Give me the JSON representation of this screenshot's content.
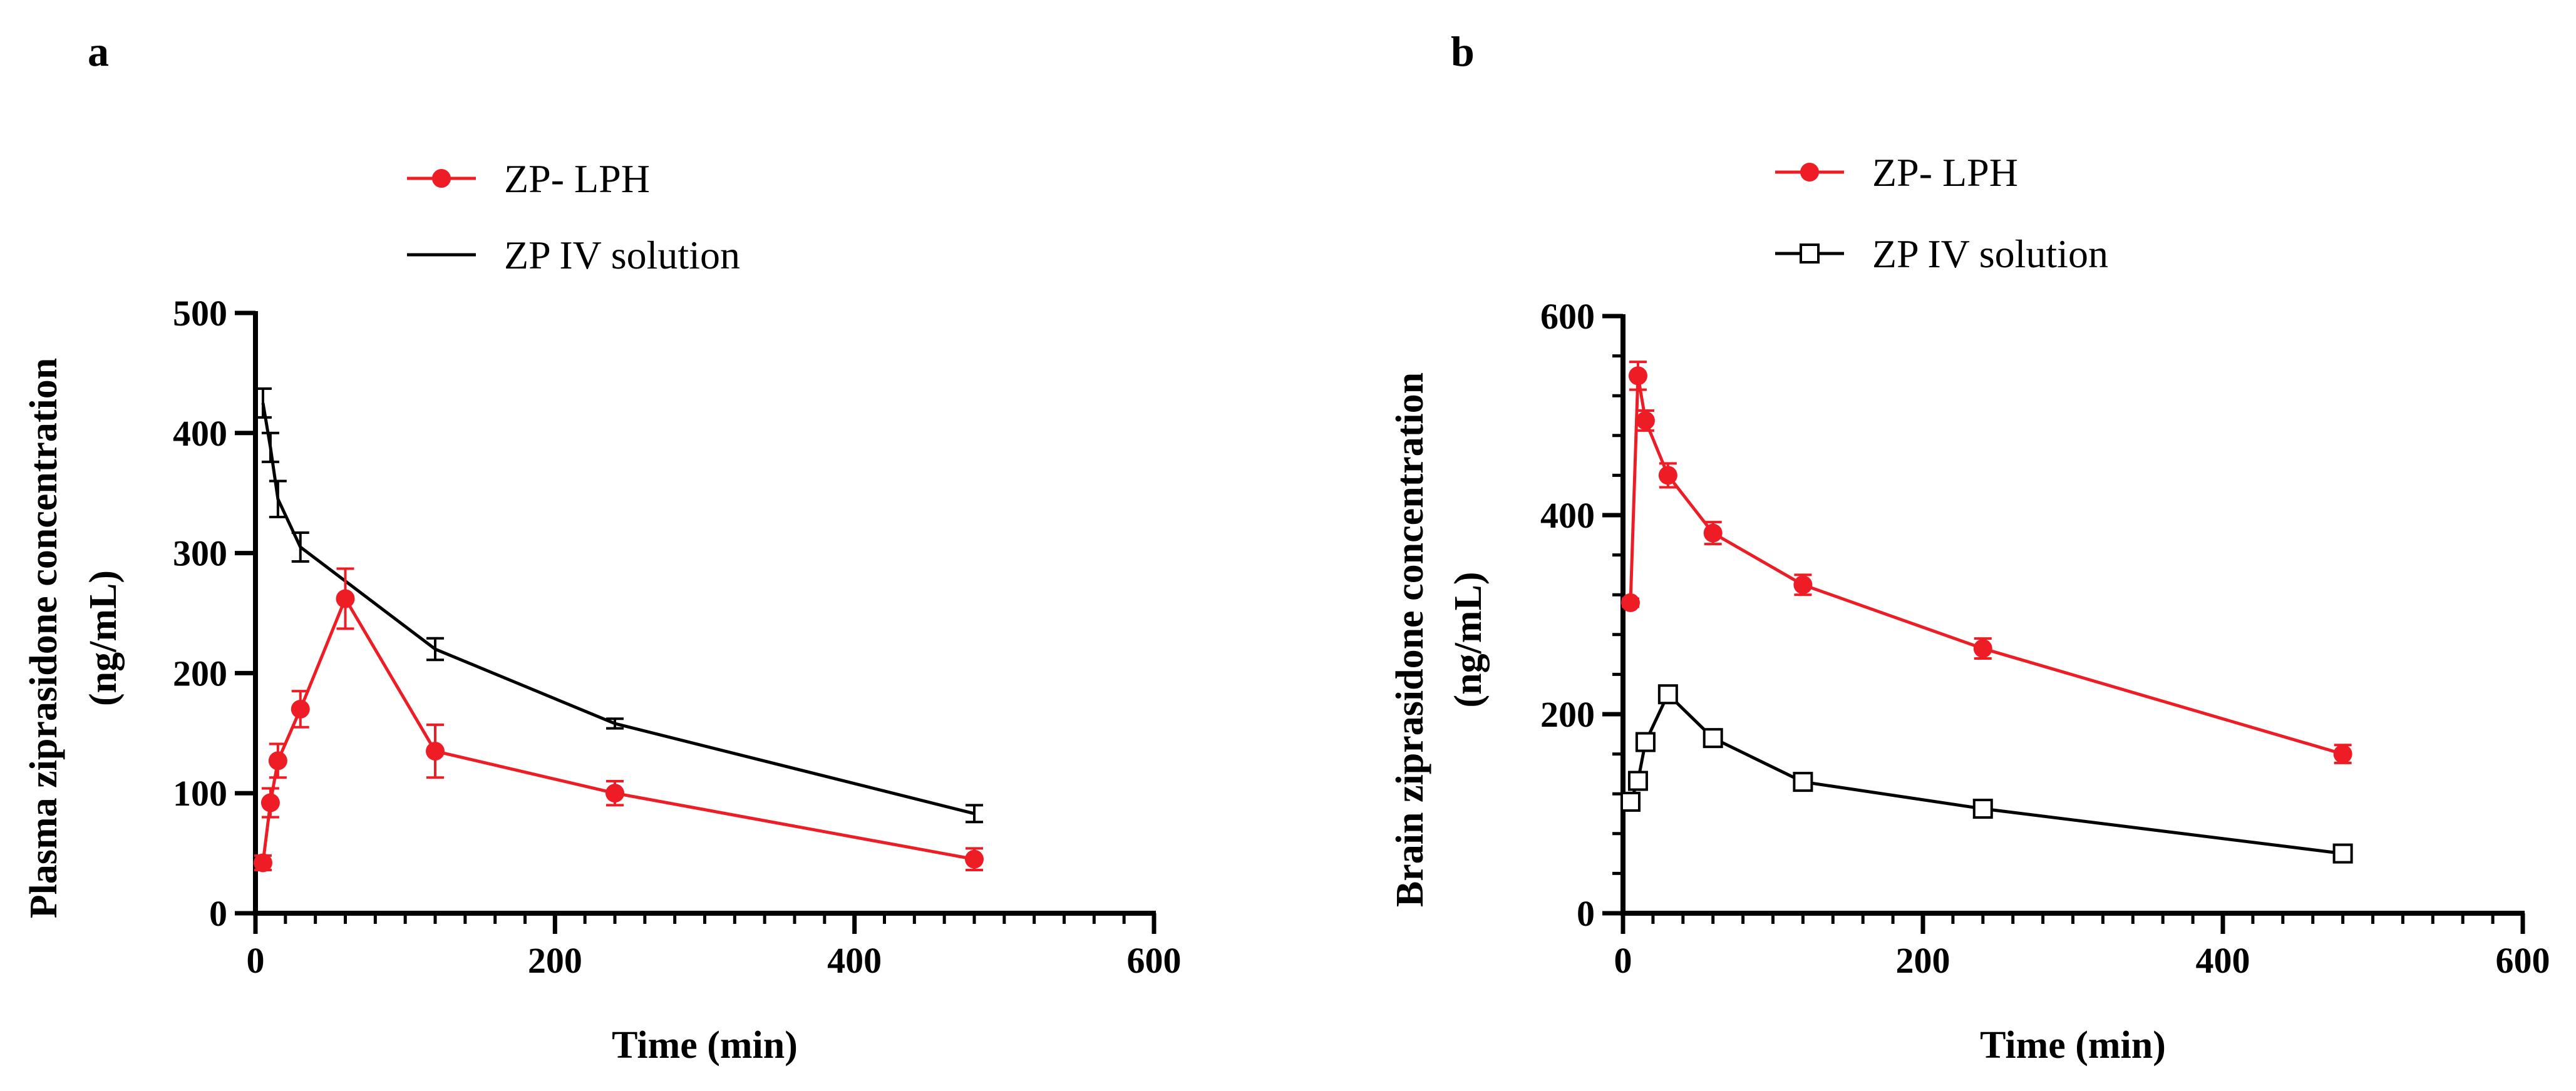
{
  "chart_data": [
    {
      "type": "line",
      "panel": "a",
      "xlabel": "Time (min)",
      "ylabel": [
        "Plasma ziprasidone concentration",
        "(ng/mL)"
      ],
      "xlim": [
        0,
        600
      ],
      "ylim": [
        0,
        500
      ],
      "x_major_ticks": [
        0,
        200,
        400,
        600
      ],
      "x_minor_step": 20,
      "y_major_ticks": [
        0,
        100,
        200,
        300,
        400,
        500
      ],
      "grid": false,
      "legend_position": "top",
      "series": [
        {
          "name": "ZP- LPH",
          "color": "#ee1c25",
          "marker": "filled-circle",
          "x": [
            5,
            10,
            15,
            30,
            60,
            120,
            240,
            480
          ],
          "y": [
            42,
            92,
            127,
            170,
            262,
            135,
            100,
            45
          ],
          "error": [
            6,
            12,
            14,
            15,
            25,
            22,
            10,
            9
          ]
        },
        {
          "name": "ZP IV solution",
          "color": "#000000",
          "marker": "none",
          "x": [
            5,
            10,
            15,
            30,
            120,
            240,
            480
          ],
          "y": [
            425,
            388,
            345,
            305,
            220,
            158,
            83
          ],
          "error": [
            12,
            12,
            15,
            12,
            9,
            4,
            7
          ]
        }
      ]
    },
    {
      "type": "line",
      "panel": "b",
      "xlabel": "Time (min)",
      "ylabel": [
        "Brain ziprasidone concentration",
        "(ng/mL)"
      ],
      "xlim": [
        0,
        600
      ],
      "ylim": [
        0,
        600
      ],
      "x_major_ticks": [
        0,
        200,
        400,
        600
      ],
      "x_minor_step": 20,
      "y_major_ticks": [
        0,
        200,
        400,
        600
      ],
      "y_minor_step": 40,
      "grid": false,
      "legend_position": "top",
      "series": [
        {
          "name": "ZP- LPH",
          "color": "#ee1c25",
          "marker": "filled-circle",
          "x": [
            5,
            10,
            15,
            30,
            60,
            120,
            240,
            480
          ],
          "y": [
            312,
            540,
            495,
            440,
            382,
            330,
            266,
            160
          ],
          "error": [
            4,
            14,
            10,
            12,
            11,
            10,
            10,
            9
          ]
        },
        {
          "name": "ZP IV solution",
          "color": "#000000",
          "marker": "open-square",
          "x": [
            5,
            10,
            15,
            30,
            60,
            120,
            240,
            480
          ],
          "y": [
            112,
            133,
            172,
            220,
            176,
            132,
            105,
            60
          ],
          "error": [
            4,
            5,
            5,
            5,
            4,
            4,
            4,
            3
          ]
        }
      ]
    }
  ]
}
